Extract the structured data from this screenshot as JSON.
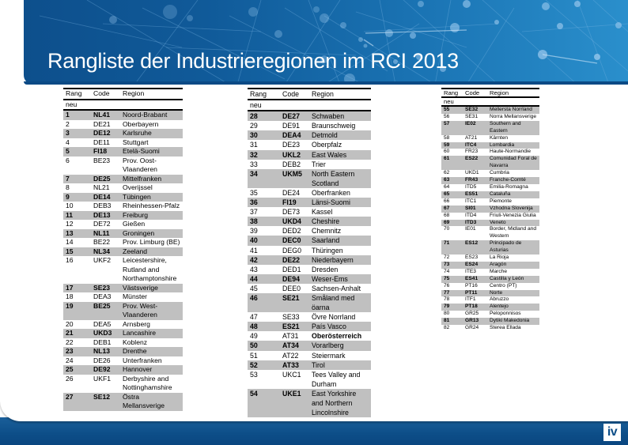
{
  "header": {
    "title": "Rangliste der Industrieregionen im RCI 2013"
  },
  "table_columns": {
    "rank_line1": "Rang",
    "rank_line2": "neu",
    "code": "Code",
    "region": "Region"
  },
  "tables": [
    {
      "rows": [
        {
          "rank": "1",
          "code": "NL41",
          "region": "Noord-Brabant",
          "shaded": true
        },
        {
          "rank": "2",
          "code": "DE21",
          "region": "Oberbayern",
          "shaded": false
        },
        {
          "rank": "3",
          "code": "DE12",
          "region": "Karlsruhe",
          "shaded": true
        },
        {
          "rank": "4",
          "code": "DE11",
          "region": "Stuttgart",
          "shaded": false
        },
        {
          "rank": "5",
          "code": "FI18",
          "region": "Etelä-Suomi",
          "shaded": true
        },
        {
          "rank": "6",
          "code": "BE23",
          "region": "Prov. Oost-Vlaanderen",
          "shaded": false
        },
        {
          "rank": "7",
          "code": "DE25",
          "region": "Mittelfranken",
          "shaded": true
        },
        {
          "rank": "8",
          "code": "NL21",
          "region": "Overijssel",
          "shaded": false
        },
        {
          "rank": "9",
          "code": "DE14",
          "region": "Tübingen",
          "shaded": true
        },
        {
          "rank": "10",
          "code": "DEB3",
          "region": "Rheinhessen-Pfalz",
          "shaded": false
        },
        {
          "rank": "11",
          "code": "DE13",
          "region": "Freiburg",
          "shaded": true
        },
        {
          "rank": "12",
          "code": "DE72",
          "region": "Gießen",
          "shaded": false
        },
        {
          "rank": "13",
          "code": "NL11",
          "region": "Groningen",
          "shaded": true
        },
        {
          "rank": "14",
          "code": "BE22",
          "region": "Prov. Limburg (BE)",
          "shaded": false
        },
        {
          "rank": "15",
          "code": "NL34",
          "region": "Zeeland",
          "shaded": true
        },
        {
          "rank": "16",
          "code": "UKF2",
          "region": "Leicestershire, Rutland and Northamptonshire",
          "shaded": false
        },
        {
          "rank": "17",
          "code": "SE23",
          "region": "Västsverige",
          "shaded": true
        },
        {
          "rank": "18",
          "code": "DEA3",
          "region": "Münster",
          "shaded": false
        },
        {
          "rank": "19",
          "code": "BE25",
          "region": "Prov. West-Vlaanderen",
          "shaded": true
        },
        {
          "rank": "20",
          "code": "DEA5",
          "region": "Arnsberg",
          "shaded": false
        },
        {
          "rank": "21",
          "code": "UKD3",
          "region": "Lancashire",
          "shaded": true
        },
        {
          "rank": "22",
          "code": "DEB1",
          "region": "Koblenz",
          "shaded": false
        },
        {
          "rank": "23",
          "code": "NL13",
          "region": "Drenthe",
          "shaded": true
        },
        {
          "rank": "24",
          "code": "DE26",
          "region": "Unterfranken",
          "shaded": false
        },
        {
          "rank": "25",
          "code": "DE92",
          "region": "Hannover",
          "shaded": true
        },
        {
          "rank": "26",
          "code": "UKF1",
          "region": "Derbyshire and Nottinghamshire",
          "shaded": false
        },
        {
          "rank": "27",
          "code": "SE12",
          "region": "Östra Mellansverige",
          "shaded": true
        }
      ]
    },
    {
      "rows": [
        {
          "rank": "28",
          "code": "DE27",
          "region": "Schwaben",
          "shaded": true
        },
        {
          "rank": "29",
          "code": "DE91",
          "region": "Braunschweig",
          "shaded": false
        },
        {
          "rank": "30",
          "code": "DEA4",
          "region": "Detmold",
          "shaded": true
        },
        {
          "rank": "31",
          "code": "DE23",
          "region": "Oberpfalz",
          "shaded": false
        },
        {
          "rank": "32",
          "code": "UKL2",
          "region": "East Wales",
          "shaded": true
        },
        {
          "rank": "33",
          "code": "DEB2",
          "region": "Trier",
          "shaded": false
        },
        {
          "rank": "34",
          "code": "UKM5",
          "region": "North Eastern Scotland",
          "shaded": true
        },
        {
          "rank": "35",
          "code": "DE24",
          "region": "Oberfranken",
          "shaded": false
        },
        {
          "rank": "36",
          "code": "FI19",
          "region": "Länsi-Suomi",
          "shaded": true
        },
        {
          "rank": "37",
          "code": "DE73",
          "region": "Kassel",
          "shaded": false
        },
        {
          "rank": "38",
          "code": "UKD4",
          "region": "Cheshire",
          "shaded": true
        },
        {
          "rank": "39",
          "code": "DED2",
          "region": "Chemnitz",
          "shaded": false
        },
        {
          "rank": "40",
          "code": "DEC0",
          "region": "Saarland",
          "shaded": true
        },
        {
          "rank": "41",
          "code": "DEG0",
          "region": "Thüringen",
          "shaded": false
        },
        {
          "rank": "42",
          "code": "DE22",
          "region": "Niederbayern",
          "shaded": true
        },
        {
          "rank": "43",
          "code": "DED1",
          "region": "Dresden",
          "shaded": false
        },
        {
          "rank": "44",
          "code": "DE94",
          "region": "Weser-Ems",
          "shaded": true
        },
        {
          "rank": "45",
          "code": "DEE0",
          "region": "Sachsen-Anhalt",
          "shaded": false
        },
        {
          "rank": "46",
          "code": "SE21",
          "region": "Småland med öarna",
          "shaded": true
        },
        {
          "rank": "47",
          "code": "SE33",
          "region": "Övre Norrland",
          "shaded": false
        },
        {
          "rank": "48",
          "code": "ES21",
          "region": "País Vasco",
          "shaded": true
        },
        {
          "rank": "49",
          "code": "AT31",
          "region": "Oberösterreich",
          "shaded": false,
          "bold_region": true
        },
        {
          "rank": "50",
          "code": "AT34",
          "region": "Vorarlberg",
          "shaded": true
        },
        {
          "rank": "51",
          "code": "AT22",
          "region": "Steiermark",
          "shaded": false
        },
        {
          "rank": "52",
          "code": "AT33",
          "region": "Tirol",
          "shaded": true
        },
        {
          "rank": "53",
          "code": "UKC1",
          "region": "Tees Valley and Durham",
          "shaded": false
        },
        {
          "rank": "54",
          "code": "UKE1",
          "region": "East Yorkshire and Northern Lincolnshire",
          "shaded": true
        }
      ]
    },
    {
      "rows": [
        {
          "rank": "55",
          "code": "SE32",
          "region": "Mellersta Norrland",
          "shaded": true
        },
        {
          "rank": "56",
          "code": "SE31",
          "region": "Norra Mellansverige",
          "shaded": false
        },
        {
          "rank": "57",
          "code": "IE02",
          "region": "Southern and Eastern",
          "shaded": true
        },
        {
          "rank": "58",
          "code": "AT21",
          "region": "Kärnten",
          "shaded": false
        },
        {
          "rank": "59",
          "code": "ITC4",
          "region": "Lombardia",
          "shaded": true
        },
        {
          "rank": "60",
          "code": "FR23",
          "region": "Haute-Normandie",
          "shaded": false
        },
        {
          "rank": "61",
          "code": "ES22",
          "region": "Comunidad Foral de Navarra",
          "shaded": true
        },
        {
          "rank": "62",
          "code": "UKD1",
          "region": "Cumbria",
          "shaded": false
        },
        {
          "rank": "63",
          "code": "FR43",
          "region": "Franche-Comté",
          "shaded": true
        },
        {
          "rank": "64",
          "code": "ITD5",
          "region": "Emilia-Romagna",
          "shaded": false
        },
        {
          "rank": "65",
          "code": "ES51",
          "region": "Cataluña",
          "shaded": true
        },
        {
          "rank": "66",
          "code": "ITC1",
          "region": "Piemonte",
          "shaded": false
        },
        {
          "rank": "67",
          "code": "SI01",
          "region": "Vzhodna Slovenija",
          "shaded": true
        },
        {
          "rank": "68",
          "code": "ITD4",
          "region": "Friuli-Venezia Giulia",
          "shaded": false
        },
        {
          "rank": "69",
          "code": "ITD3",
          "region": "Veneto",
          "shaded": true
        },
        {
          "rank": "70",
          "code": "IE01",
          "region": "Border, Midland and Western",
          "shaded": false
        },
        {
          "rank": "71",
          "code": "ES12",
          "region": "Principado de Asturias",
          "shaded": true
        },
        {
          "rank": "72",
          "code": "ES23",
          "region": "La Rioja",
          "shaded": false
        },
        {
          "rank": "73",
          "code": "ES24",
          "region": "Aragón",
          "shaded": true
        },
        {
          "rank": "74",
          "code": "ITE3",
          "region": "Marche",
          "shaded": false
        },
        {
          "rank": "75",
          "code": "ES41",
          "region": "Castilla y León",
          "shaded": true
        },
        {
          "rank": "76",
          "code": "PT16",
          "region": "Centro (PT)",
          "shaded": false
        },
        {
          "rank": "77",
          "code": "PT11",
          "region": "Norte",
          "shaded": true
        },
        {
          "rank": "78",
          "code": "ITF1",
          "region": "Abruzzo",
          "shaded": false
        },
        {
          "rank": "79",
          "code": "PT18",
          "region": "Alentejo",
          "shaded": true
        },
        {
          "rank": "80",
          "code": "GR25",
          "region": "Peloponnisos",
          "shaded": false
        },
        {
          "rank": "81",
          "code": "GR13",
          "region": "Dytiki Makedonia",
          "shaded": true
        },
        {
          "rank": "82",
          "code": "GR24",
          "region": "Sterea Ellada",
          "shaded": false
        }
      ]
    }
  ],
  "footer": {
    "logo_text": "iv"
  },
  "colors": {
    "header_dark": "#0d4f8c",
    "header_light": "#2a8fcc",
    "row_shade": "#c0c0c0",
    "footer": "#0d4e88"
  }
}
